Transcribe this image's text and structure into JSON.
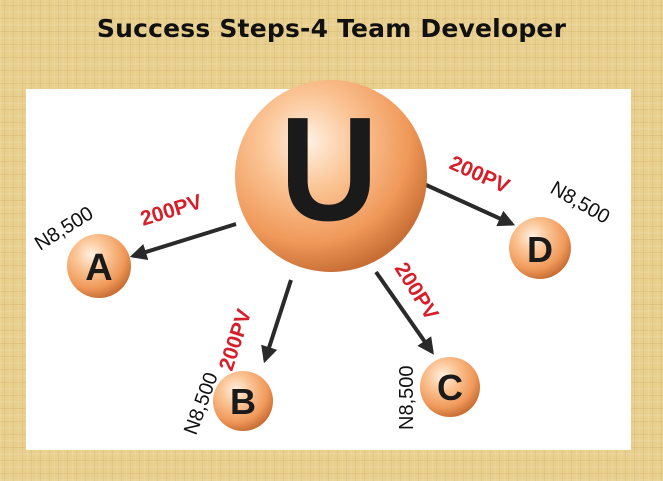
{
  "title": "Success Steps-4 Team Developer",
  "center_node": {
    "label": "U"
  },
  "nodes": [
    {
      "id": "a",
      "label": "A",
      "points": "200PV",
      "amount": "N8,500"
    },
    {
      "id": "b",
      "label": "B",
      "points": "200PV",
      "amount": "N8,500"
    },
    {
      "id": "c",
      "label": "C",
      "points": "200PV",
      "amount": "N8,500"
    },
    {
      "id": "d",
      "label": "D",
      "points": "200PV",
      "amount": "N8,500"
    }
  ],
  "colors": {
    "node_fill": "#f2a46a",
    "pv_text": "#d61f2a",
    "arrow": "#2a2a2a"
  }
}
